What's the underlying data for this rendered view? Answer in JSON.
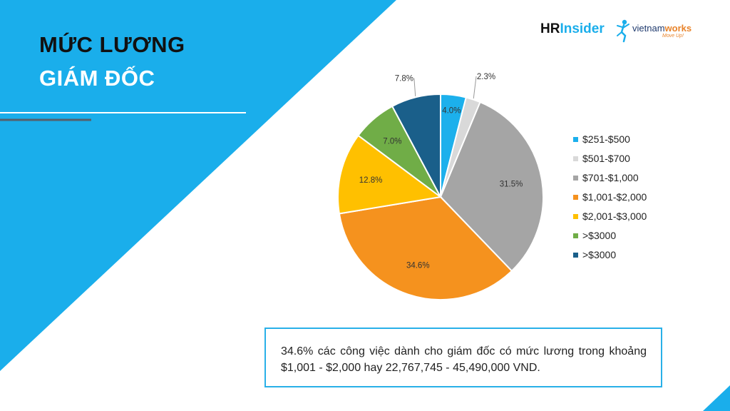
{
  "header": {
    "title_line1": "MỨC LƯƠNG",
    "title_line2": "GIÁM ĐỐC"
  },
  "logos": {
    "hr_bold": "HR",
    "hr_rest": "Insider",
    "vnw_light": "vietnam",
    "vnw_bold": "works",
    "vnw_tagline": "Move Up!"
  },
  "colors": {
    "background_blue": "#1aaeeb",
    "accent_border": "#29b0e8"
  },
  "chart_data": {
    "type": "pie",
    "title": "",
    "legend_position": "right",
    "slices": [
      {
        "label": "$251-$500",
        "value": 4.0,
        "display": "4.0%",
        "color": "#1cb0ec"
      },
      {
        "label": "$501-$700",
        "value": 2.3,
        "display": "2.3%",
        "color": "#d9d9d9"
      },
      {
        "label": "$701-$1,000",
        "value": 31.5,
        "display": "31.5%",
        "color": "#a5a5a5"
      },
      {
        "label": "$1,001-$2,000",
        "value": 34.6,
        "display": "34.6%",
        "color": "#f5921e"
      },
      {
        "label": "$2,001-$3,000",
        "value": 12.8,
        "display": "12.8%",
        "color": "#ffc000"
      },
      {
        "label": ">$3000",
        "value": 7.0,
        "display": "7.0%",
        "color": "#70ad47"
      },
      {
        "label": ">$3000",
        "value": 7.8,
        "display": "7.8%",
        "color": "#1a5f8a"
      }
    ]
  },
  "note": {
    "text": "34.6% các công việc dành cho giám đốc có mức lương trong khoảng $1,001 - $2,000 hay 22,767,745 - 45,490,000 VND."
  }
}
